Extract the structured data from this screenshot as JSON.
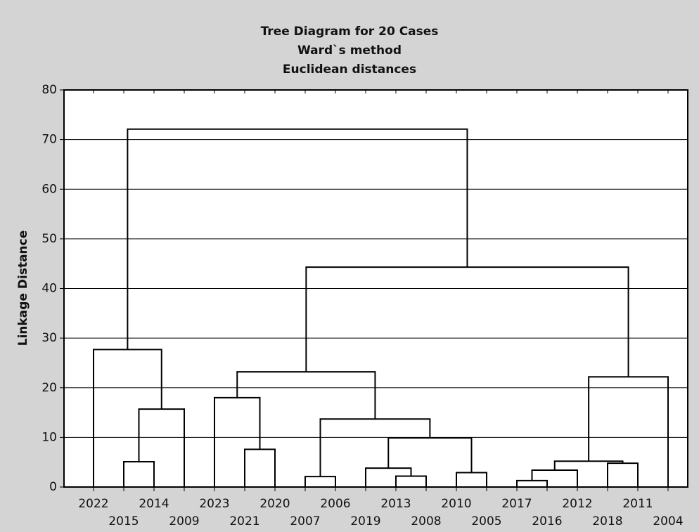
{
  "chart_data": {
    "type": "dendrogram",
    "title": [
      "Tree Diagram for 20 Cases",
      "Ward`s method",
      "Euclidean distances"
    ],
    "y_label": "Linkage Distance",
    "leaves": [
      "2022",
      "2015",
      "2014",
      "2009",
      "2023",
      "2021",
      "2020",
      "2007",
      "2006",
      "2019",
      "2013",
      "2008",
      "2010",
      "2005",
      "2017",
      "2016",
      "2012",
      "2018",
      "2011",
      "2004"
    ],
    "merges": [
      {
        "children": [
          1,
          2
        ],
        "height": 5.1
      },
      {
        "children": [
          20,
          3
        ],
        "height": 15.7
      },
      {
        "children": [
          0,
          21
        ],
        "height": 27.7
      },
      {
        "children": [
          5,
          6
        ],
        "height": 7.6
      },
      {
        "children": [
          4,
          23
        ],
        "height": 18.0
      },
      {
        "children": [
          7,
          8
        ],
        "height": 2.1
      },
      {
        "children": [
          10,
          11
        ],
        "height": 2.2
      },
      {
        "children": [
          9,
          26
        ],
        "height": 3.8
      },
      {
        "children": [
          12,
          13
        ],
        "height": 2.9
      },
      {
        "children": [
          27,
          28
        ],
        "height": 9.9
      },
      {
        "children": [
          25,
          29
        ],
        "height": 13.7
      },
      {
        "children": [
          24,
          30
        ],
        "height": 23.2
      },
      {
        "children": [
          14,
          15
        ],
        "height": 1.3
      },
      {
        "children": [
          32,
          16
        ],
        "height": 3.4
      },
      {
        "children": [
          17,
          18
        ],
        "height": 4.8
      },
      {
        "children": [
          33,
          34
        ],
        "height": 5.2
      },
      {
        "children": [
          35,
          19
        ],
        "height": 22.2
      },
      {
        "children": [
          31,
          36
        ],
        "height": 44.3
      },
      {
        "children": [
          22,
          37
        ],
        "height": 72.1
      }
    ],
    "ylim": [
      0,
      80
    ],
    "yticks": [
      0,
      10,
      20,
      30,
      40,
      50,
      60,
      70,
      80
    ],
    "grid": true
  }
}
